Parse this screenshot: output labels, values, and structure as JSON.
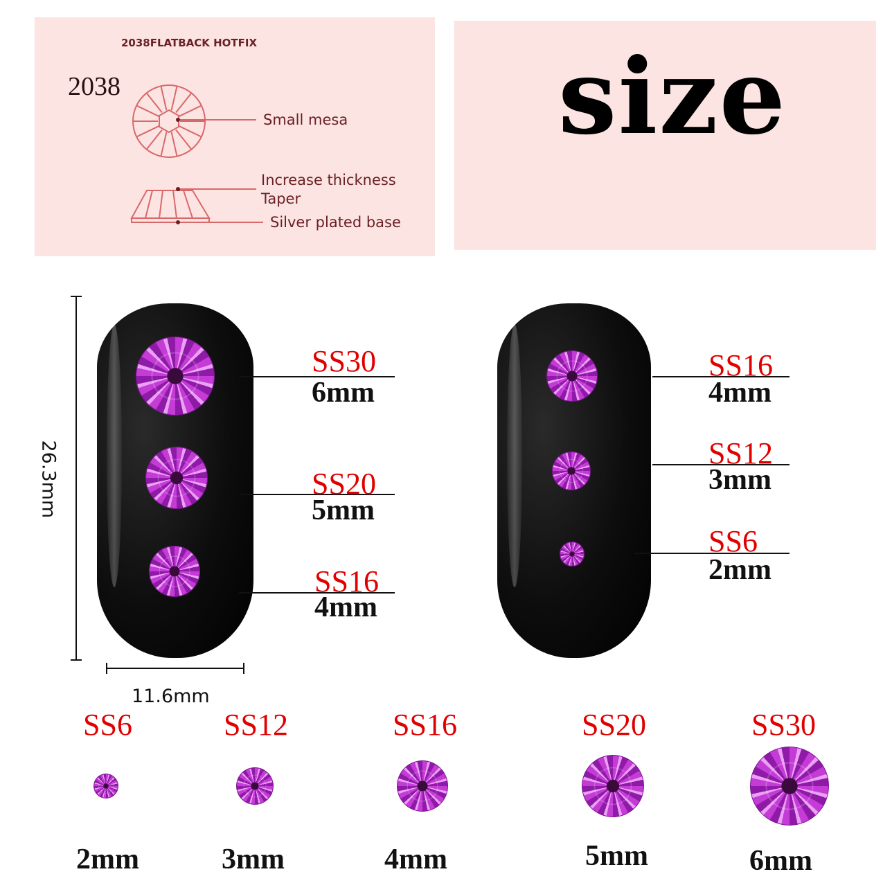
{
  "diagram": {
    "heading": "2038FLATBACK HOTFIX",
    "model": "2038",
    "callouts": [
      "Small mesa",
      "Increase thickness",
      "Taper",
      "Silver plated base"
    ],
    "line_color": "#d9686a"
  },
  "size_panel": {
    "title": "size"
  },
  "dimensions": {
    "height": "26.3mm",
    "width": "11.6mm"
  },
  "left_nail": [
    {
      "ss": "SS30",
      "mm": "6mm"
    },
    {
      "ss": "SS20",
      "mm": "5mm"
    },
    {
      "ss": "SS16",
      "mm": "4mm"
    }
  ],
  "right_nail": [
    {
      "ss": "SS16",
      "mm": "4mm"
    },
    {
      "ss": "SS12",
      "mm": "3mm"
    },
    {
      "ss": "SS6",
      "mm": "2mm"
    }
  ],
  "bottom_row": [
    {
      "ss": "SS6",
      "mm": "2mm"
    },
    {
      "ss": "SS12",
      "mm": "3mm"
    },
    {
      "ss": "SS16",
      "mm": "4mm"
    },
    {
      "ss": "SS20",
      "mm": "5mm"
    },
    {
      "ss": "SS30",
      "mm": "6mm"
    }
  ],
  "colors": {
    "label_red": "#e00000",
    "gem": "#c43bd6",
    "panel_pink": "#fbe4e2"
  }
}
